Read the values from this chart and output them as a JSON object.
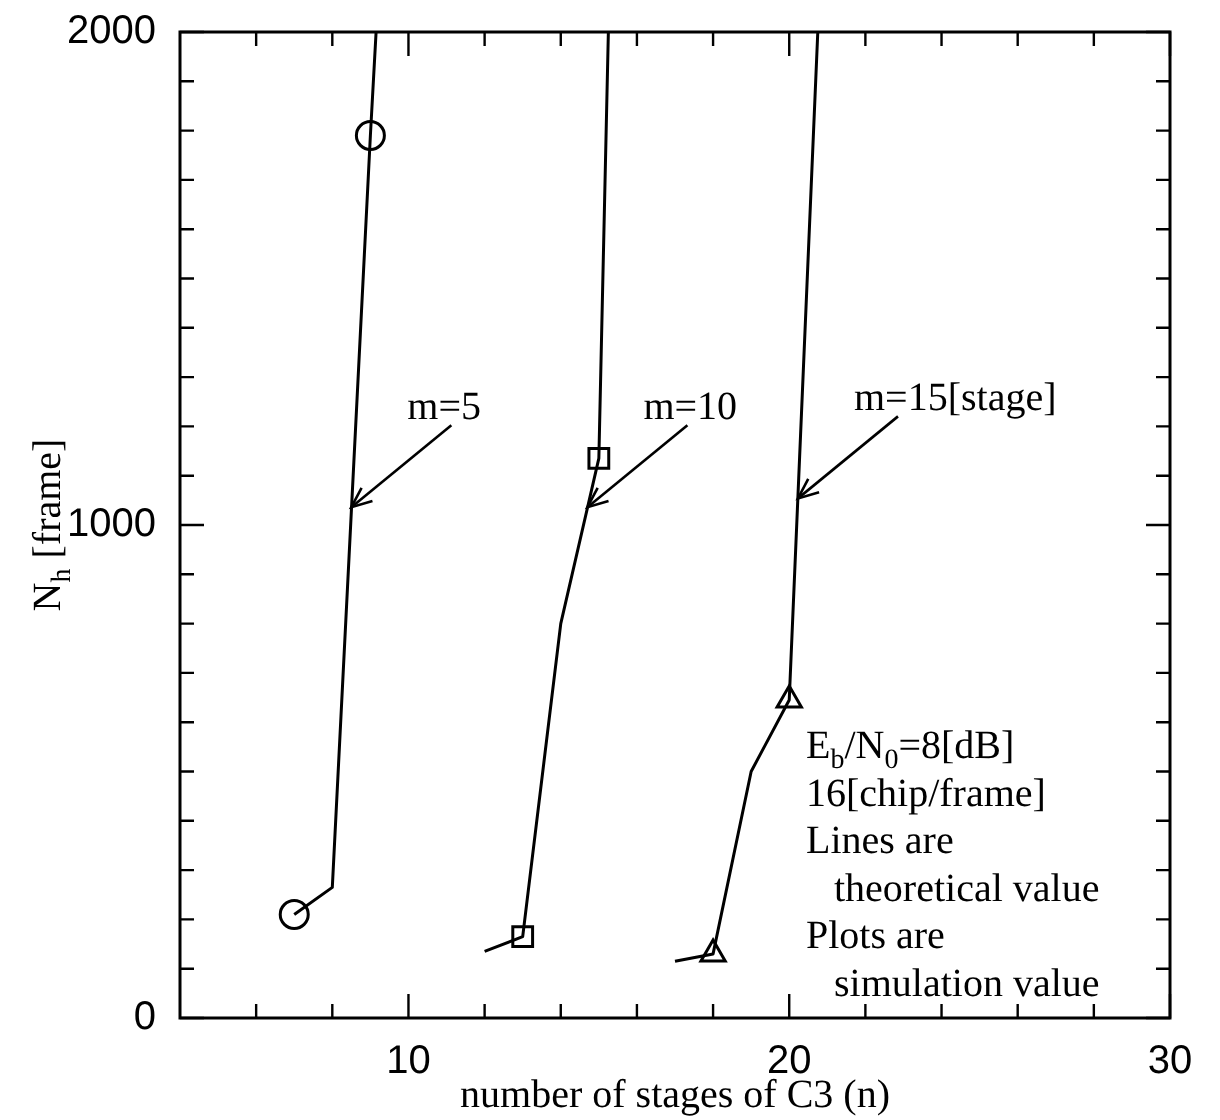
{
  "chart_data": {
    "type": "line",
    "xlabel": "number of stages of C3 (n)",
    "ylabel": "N$_{h}$ [frame]",
    "xlim": [
      4,
      30
    ],
    "ylim": [
      0,
      2000
    ],
    "xticks": [
      {
        "value": 6,
        "label": null
      },
      {
        "value": 8,
        "label": null
      },
      10,
      {
        "value": 12,
        "label": null
      },
      {
        "value": 14,
        "label": null
      },
      {
        "value": 16,
        "label": null
      },
      {
        "value": 18,
        "label": null
      },
      20,
      {
        "value": 22,
        "label": null
      },
      {
        "value": 24,
        "label": null
      },
      {
        "value": 26,
        "label": null
      },
      {
        "value": 28,
        "label": null
      },
      30
    ],
    "yticks": [
      0,
      {
        "value": 100,
        "label": null
      },
      {
        "value": 200,
        "label": null
      },
      {
        "value": 300,
        "label": null
      },
      {
        "value": 400,
        "label": null
      },
      {
        "value": 500,
        "label": null
      },
      {
        "value": 600,
        "label": null
      },
      {
        "value": 700,
        "label": null
      },
      {
        "value": 800,
        "label": null
      },
      {
        "value": 900,
        "label": null
      },
      1000,
      {
        "value": 1100,
        "label": null
      },
      {
        "value": 1200,
        "label": null
      },
      {
        "value": 1300,
        "label": null
      },
      {
        "value": 1400,
        "label": null
      },
      {
        "value": 1500,
        "label": null
      },
      {
        "value": 1600,
        "label": null
      },
      {
        "value": 1700,
        "label": null
      },
      {
        "value": 1800,
        "label": null
      },
      {
        "value": 1900,
        "label": null
      },
      2000
    ],
    "grid": false,
    "legend": false,
    "series": [
      {
        "color": "#000000",
        "marker": "none",
        "x": [
          7,
          8,
          9,
          9.15
        ],
        "values": [
          210,
          265,
          1790,
          2000
        ]
      },
      {
        "color": "#000000",
        "marker": "none",
        "x": [
          12,
          13,
          14,
          15,
          15.25
        ],
        "values": [
          135,
          165,
          800,
          1135,
          2000
        ]
      },
      {
        "color": "#000000",
        "marker": "none",
        "x": [
          17,
          18,
          19,
          20,
          20.75
        ],
        "values": [
          115,
          130,
          500,
          645,
          2000
        ]
      },
      {
        "type": "scatter",
        "color": "#000000",
        "marker": "circle",
        "x": [
          7,
          9
        ],
        "values": [
          210,
          1790
        ]
      },
      {
        "type": "scatter",
        "color": "#000000",
        "marker": "square",
        "x": [
          13,
          15
        ],
        "values": [
          165,
          1135
        ]
      },
      {
        "type": "scatter",
        "color": "#000000",
        "marker": "triangle",
        "x": [
          18,
          20
        ],
        "values": [
          130,
          645
        ]
      }
    ],
    "annotations": [
      {
        "text": "m=5",
        "x": 8.5,
        "y": 1036
      },
      {
        "text": "m=10",
        "x": 14.7,
        "y": 1036
      },
      {
        "text": "m=15[stage]",
        "x": 20.23,
        "y": 1054
      },
      "E$_{b}$/N$_{0}$=8[dB]",
      "16[chip/frame]",
      "Lines are\ntheoretical value",
      "Plots are\nsimulation value"
    ]
  }
}
